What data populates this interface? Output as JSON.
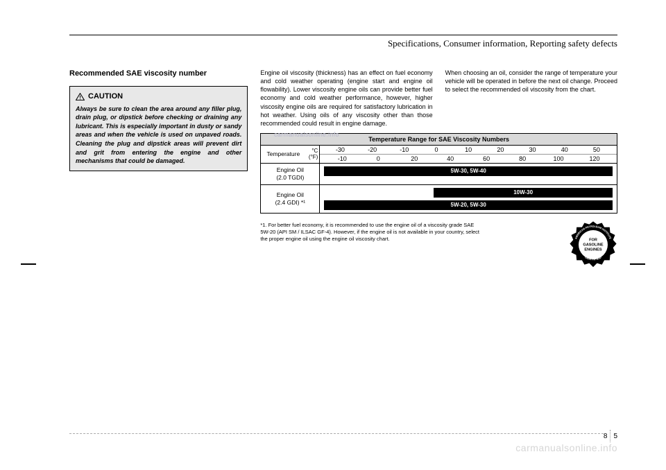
{
  "header": "Specifications, Consumer information, Reporting safety defects",
  "section_title": "Recommended SAE viscosity number",
  "caution": {
    "label": "CAUTION",
    "body": "Always be sure to clean the area around any filler plug, drain plug, or dipstick before checking or draining any lubricant. This is especially important in dusty or sandy areas and when the vehicle is used on unpaved roads. Cleaning the plug and dipstick areas will prevent dirt and grit from entering the engine and other mechanisms that could be damaged."
  },
  "col2_text": "Engine oil viscosity (thickness) has an effect on fuel economy and cold weather operating (engine start and engine oil flowability). Lower viscosity engine oils can provide better fuel economy and cold weather performance, however, higher viscosity engine oils are required for satisfactory lubrication in hot weather. Using oils of any viscosity other than those recommended could result in engine damage.",
  "col3_text": "When choosing an oil, consider the range of temperature your vehicle will be operated in before the next oil change. Proceed to select the recommended oil viscosity from the chart.",
  "table": {
    "title": "Temperature Range for SAE Viscosity Numbers",
    "temp_label": "Temperature",
    "unit_c": "°C",
    "unit_f": "(°F)",
    "c_vals": [
      "-30",
      "-20",
      "-10",
      "0",
      "10",
      "20",
      "30",
      "40",
      "50"
    ],
    "f_vals": [
      "-10",
      "0",
      "20",
      "40",
      "60",
      "80",
      "100",
      "120"
    ],
    "rows": [
      {
        "label_l1": "Engine Oil",
        "label_l2": "(2.0 TGDI)",
        "bars": [
          {
            "text": "5W-30, 5W-40",
            "left_pct": 0,
            "width_pct": 100
          }
        ]
      },
      {
        "label_l1": "Engine Oil",
        "label_l2": "(2.4 GDI) *¹",
        "bars": [
          {
            "text": "10W-30",
            "left_pct": 38,
            "width_pct": 62
          },
          {
            "text": "5W-20, 5W-30",
            "left_pct": 0,
            "width_pct": 100
          }
        ]
      }
    ]
  },
  "footnote": "*1. For better fuel economy, it is recommended to use the engine oil of a viscosity grade SAE 5W-20 (API SM / ILSAC GF-4). However, if the engine oil is not available in your country, select the proper engine oil using the engine oil viscosity chart.",
  "api_badge": {
    "outer_top": "AMERICAN PETROLEUM INSTITUTE",
    "outer_bottom": "CERTIFIED",
    "inner_l1": "FOR",
    "inner_l2": "GASOLINE",
    "inner_l3": "ENGINES"
  },
  "page": {
    "section": "8",
    "num": "5"
  },
  "watermark": "carmanualsonline.info",
  "watermark_top": "carmanualsonline.info",
  "colors": {
    "bg": "#ffffff",
    "text": "#000000",
    "caution_bg": "#e8e8e8",
    "table_header_bg": "#d9d9d9",
    "bar_bg": "#000000",
    "bar_text": "#ffffff",
    "watermark": "#d6d6d6"
  }
}
